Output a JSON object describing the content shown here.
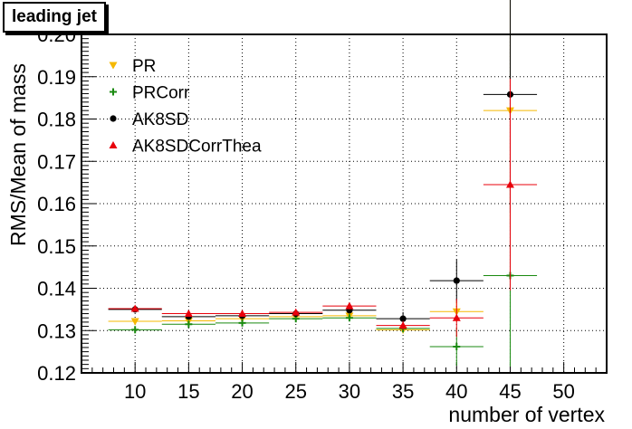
{
  "chart_data": {
    "type": "scatter",
    "title": "leading jet",
    "xlabel": "number of vertex",
    "ylabel": "RMS/Mean of mass",
    "xlim": [
      5,
      54
    ],
    "ylim": [
      0.12,
      0.2
    ],
    "x_ticks": [
      "10",
      "15",
      "20",
      "25",
      "30",
      "35",
      "40",
      "45",
      "50"
    ],
    "y_ticks": [
      "0.12",
      "0.13",
      "0.14",
      "0.15",
      "0.16",
      "0.17",
      "0.18",
      "0.19",
      "0.20"
    ],
    "grid": true,
    "legend_position": "top-left",
    "x": [
      10,
      15,
      20,
      25,
      30,
      35,
      40,
      45
    ],
    "x_halfwidth": 2.5,
    "series": [
      {
        "name": "PR",
        "color": "#f5b800",
        "marker": "triangle-down",
        "values": [
          0.1322,
          0.1323,
          0.1328,
          0.1333,
          0.1335,
          0.1302,
          0.1345,
          0.182
        ],
        "errors": [
          0.0005,
          0.0005,
          0.0005,
          0.0006,
          0.0007,
          0.0009,
          0.0025,
          0.027
        ]
      },
      {
        "name": "PRCorr",
        "color": "#1a8a10",
        "marker": "cross",
        "values": [
          0.1302,
          0.1315,
          0.1318,
          0.1328,
          0.133,
          0.1305,
          0.1262,
          0.143
        ],
        "errors": [
          0.0004,
          0.0005,
          0.0005,
          0.0005,
          0.0007,
          0.001,
          0.0045,
          0.0215
        ]
      },
      {
        "name": "AK8SD",
        "color": "#000000",
        "marker": "circle",
        "values": [
          0.135,
          0.1333,
          0.1335,
          0.134,
          0.1348,
          0.1328,
          0.1418,
          0.1858
        ],
        "errors": [
          0.0005,
          0.0005,
          0.0005,
          0.0006,
          0.0008,
          0.0016,
          0.005,
          0.028
        ]
      },
      {
        "name": "AK8SDCorrThea",
        "color": "#e8000b",
        "marker": "triangle-up",
        "values": [
          0.1352,
          0.134,
          0.134,
          0.1343,
          0.1358,
          0.1312,
          0.133,
          0.1645
        ],
        "errors": [
          0.0005,
          0.0005,
          0.0005,
          0.0006,
          0.0008,
          0.0011,
          0.0045,
          0.025
        ]
      }
    ]
  }
}
